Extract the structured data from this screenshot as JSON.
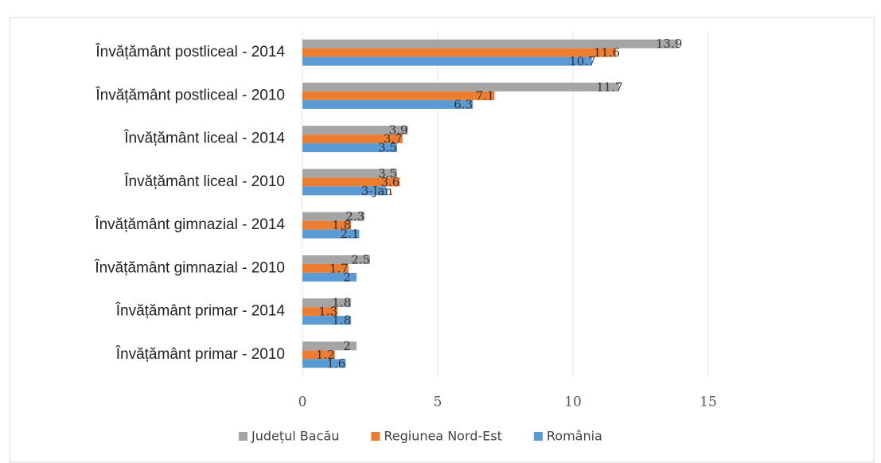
{
  "chart_data": {
    "type": "bar",
    "orientation": "horizontal",
    "categories": [
      "Învățământ postliceal - 2014",
      "Învățământ postliceal - 2010",
      "Învățământ liceal - 2014",
      "Învățământ liceal - 2010",
      "Învățământ gimnazial - 2014",
      "Învățământ gimnazial - 2010",
      "Învățământ primar - 2014",
      "Învățământ primar - 2010"
    ],
    "series": [
      {
        "name": "Județul Bacău",
        "color": "#a5a5a5",
        "values": [
          13.9,
          11.7,
          3.9,
          3.5,
          2.3,
          2.5,
          1.8,
          2
        ]
      },
      {
        "name": "Regiunea Nord-Est",
        "color": "#ed7d31",
        "values": [
          11.6,
          7.1,
          3.7,
          3.6,
          1.8,
          1.7,
          1.3,
          1.2
        ]
      },
      {
        "name": "România",
        "color": "#5b9bd5",
        "values": [
          10.7,
          6.3,
          3.5,
          3.1,
          2.1,
          2,
          1.8,
          1.6
        ],
        "value_labels": [
          "10.7",
          "6.3",
          "3.5",
          "3-Jan",
          "2.1",
          "2",
          "1.8",
          "1.6"
        ]
      }
    ],
    "xlim": [
      0,
      20
    ],
    "xticks": [
      0,
      5,
      10,
      15
    ],
    "grid": true,
    "legend": "bottom"
  }
}
